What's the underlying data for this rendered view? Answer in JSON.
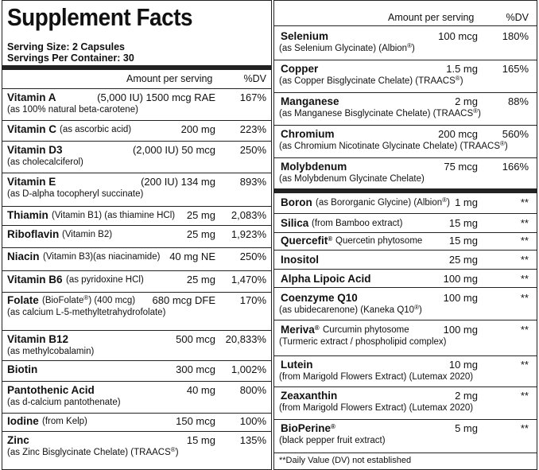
{
  "title": "Supplement Facts",
  "serving_size": "Serving Size: 2 Capsules",
  "servings_per_container": "Servings Per Container: 30",
  "header": {
    "amount": "Amount per serving",
    "dv": "%DV"
  },
  "footnote": "**Daily Value (DV) not established",
  "left_rows": [
    {
      "name": "Vitamin A",
      "mid": "(5,000 IU) 1500 mcg RAE",
      "dv": "167%",
      "sub": "(as 100% natural beta-carotene)"
    },
    {
      "name": "Vitamin C",
      "note": "(as ascorbic acid)",
      "amount": "200 mg",
      "dv": "223%"
    },
    {
      "name": "Vitamin D3",
      "mid": "(2,000 IU) 50 mcg",
      "dv": "250%",
      "sub": "(as cholecalciferol)"
    },
    {
      "name": "Vitamin E",
      "mid": "(200 IU) 134 mg",
      "dv": "893%",
      "sub": "(as D-alpha  tocopheryl succinate)"
    },
    {
      "name": "Thiamin",
      "note": "(Vitamin B1) (as thiamine HCl)",
      "amount": "25 mg",
      "dv": "2,083%"
    },
    {
      "name": "Riboflavin",
      "note": "(Vitamin B2)",
      "amount": "25 mg",
      "dv": "1,923%"
    },
    {
      "name": "Niacin",
      "note": "(Vitamin B3)(as niacinamide)",
      "amount": "40 mg NE",
      "dv": "250%"
    },
    {
      "name": "Vitamin B6",
      "note": "(as pyridoxine HCl)",
      "amount": "25 mg",
      "dv": "1,470%"
    },
    {
      "name": "Folate",
      "note": "(BioFolate",
      "note_mark": "®",
      "note2": ") (400 mcg)",
      "amount": "680 mcg DFE",
      "dv": "170%",
      "sub": "(as calcium L-5-methyltetrahydrofolate)"
    },
    {
      "name": "Vitamin B12",
      "amount": "500 mcg",
      "dv": "20,833%",
      "sub": "(as methylcobalamin)"
    },
    {
      "name": "Biotin",
      "amount": "300 mcg",
      "dv": "1,002%"
    },
    {
      "name": "Pantothenic Acid",
      "amount": "40 mg",
      "dv": "800%",
      "sub": "(as d-calcium pantothenate)"
    },
    {
      "name": "Iodine",
      "note": "(from Kelp)",
      "amount": "150 mcg",
      "dv": "100%"
    },
    {
      "name": "Zinc",
      "amount": "15 mg",
      "dv": "135%",
      "sub": "(as Zinc Bisglycinate Chelate) (TRAACS",
      "sub_mark": "®",
      "sub2": ")"
    }
  ],
  "right_rows": [
    {
      "name": "Selenium",
      "amount": "100 mcg",
      "dv": "180%",
      "sub": "(as Selenium Glycinate) (Albion",
      "sub_mark": "®",
      "sub2": ")"
    },
    {
      "name": "Copper",
      "amount": "1.5 mg",
      "dv": "165%",
      "sub": "(as Copper Bisglycinate Chelate) (TRAACS",
      "sub_mark": "®",
      "sub2": ")"
    },
    {
      "name": "Manganese",
      "amount": "2 mg",
      "dv": "88%",
      "sub": "(as Manganese Bisglycinate Chelate) (TRAACS",
      "sub_mark": "®",
      "sub2": ")"
    },
    {
      "name": "Chromium",
      "amount": "200 mcg",
      "dv": "560%",
      "sub": "(as Chromium Nicotinate Glycinate Chelate) (TRAACS",
      "sub_mark": "®",
      "sub2": ")"
    },
    {
      "name": "Molybdenum",
      "amount": "75 mcg",
      "dv": "166%",
      "sub": "(as Molybdenum Glycinate Chelate)"
    },
    {
      "name": "Boron",
      "note": "(as Bororganic Glycine) (Albion",
      "note_mark": "®",
      "note2": ")",
      "amount": "1 mg",
      "dv": "**"
    },
    {
      "name": "Silica",
      "note": "(from Bamboo extract)",
      "amount": "15 mg",
      "dv": "**"
    },
    {
      "name": "Quercefit",
      "name_mark": "®",
      "note": "Quercetin phytosome",
      "amount": "15 mg",
      "dv": "**"
    },
    {
      "name": "Inositol",
      "amount": "25 mg",
      "dv": "**"
    },
    {
      "name": "Alpha Lipoic Acid",
      "amount": "100 mg",
      "dv": "**"
    },
    {
      "name": "Coenzyme Q10",
      "amount": "100 mg",
      "dv": "**",
      "sub": "(as ubidecarenone) (Kaneka Q10",
      "sub_mark": "®",
      "sub2": ")"
    },
    {
      "name": "Meriva",
      "name_mark": "®",
      "note": "Curcumin phytosome",
      "amount": "100 mg",
      "dv": "**",
      "sub": "(Turmeric extract / phospholipid complex)"
    },
    {
      "name": "Lutein",
      "amount": "10 mg",
      "dv": "**",
      "sub": "(from Marigold Flowers Extract) (Lutemax 2020)"
    },
    {
      "name": "Zeaxanthin",
      "amount": "2 mg",
      "dv": "**",
      "sub": "(from Marigold Flowers Extract) (Lutemax 2020)"
    },
    {
      "name": "BioPerine",
      "name_mark": "®",
      "amount": "5 mg",
      "dv": "**",
      "sub": "(black pepper fruit extract)"
    }
  ]
}
